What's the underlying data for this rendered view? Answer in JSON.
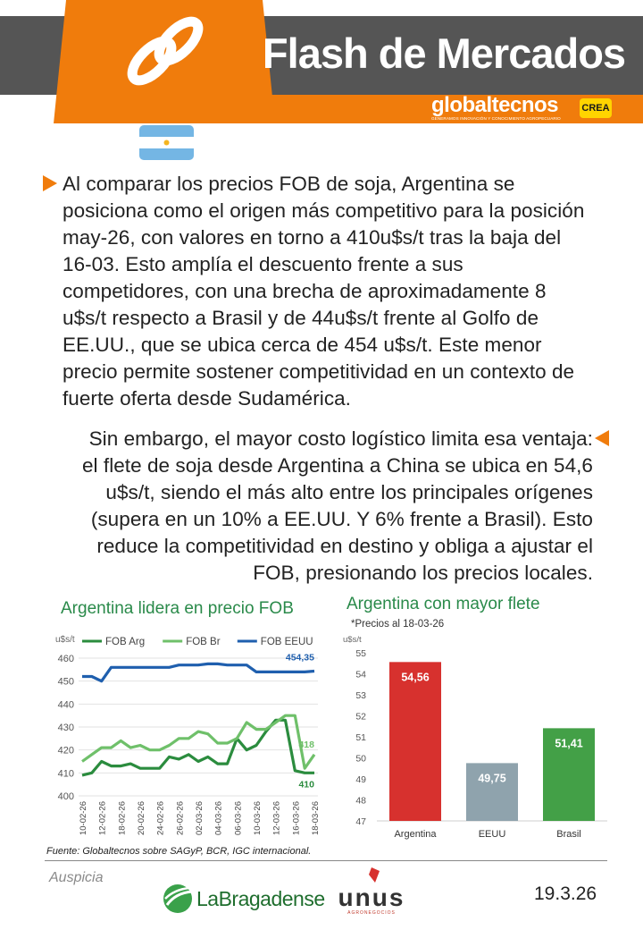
{
  "header": {
    "title": "Flash de Mercados",
    "brand": "globaltecnos",
    "brand_tagline": "GENERAMOS INNOVACIÓN Y CONOCIMIENTO AGROPECUARIO",
    "partner_logo": "CREA",
    "logo_icon": "chain-link-icon",
    "accent_color": "#f07c0c",
    "band_color": "#555555"
  },
  "flag": {
    "country": "Argentina",
    "icon": "argentina-flag-icon"
  },
  "paragraph1": {
    "lines": [
      "Al comparar los precios FOB de soja, Argentina se",
      "posiciona como el origen más competitivo para la posición",
      "may-26, con valores en torno a 410u$s/t tras la baja del",
      "16-03. Esto amplía el descuento frente a sus",
      "competidores, con una brecha de aproximadamente 8",
      "u$s/t respecto a Brasil y de 44u$s/t frente al Golfo de",
      "EE.UU., que se ubica cerca de 454 u$s/t. Este menor",
      "precio permite sostener competitividad en un contexto de",
      "fuerte oferta desde Sudamérica."
    ]
  },
  "paragraph2": {
    "lines": [
      "Sin embargo, el mayor costo logístico limita esa ventaja:",
      "el flete de soja desde Argentina a China se ubica en 54,6",
      "u$s/t, siendo el más alto entre los principales orígenes",
      "(supera en un 10% a EE.UU. Y  6% frente a Brasil). Esto",
      "reduce la competitividad en destino y obliga a ajustar el",
      "FOB, presionando los precios locales."
    ]
  },
  "chart_data": [
    {
      "type": "line",
      "title": "Argentina lidera en precio FOB",
      "ylabel": "u$s/t",
      "ylim": [
        400,
        460
      ],
      "yticks": [
        400,
        410,
        420,
        430,
        440,
        450,
        460
      ],
      "grid": true,
      "legend": "top",
      "x": [
        "10-02-26",
        "",
        "12-02-26",
        "",
        "18-02-26",
        "",
        "20-02-26",
        "",
        "24-02-26",
        "",
        "26-02-26",
        "",
        "02-03-26",
        "",
        "04-03-26",
        "",
        "06-03-26",
        "",
        "10-03-26",
        "",
        "12-03-26",
        "",
        "16-03-26",
        "",
        "18-03-26"
      ],
      "series": [
        {
          "name": "FOB Arg",
          "color": "#2b8c3e",
          "values": [
            409,
            410,
            415,
            413,
            413,
            414,
            412,
            412,
            412,
            417,
            416,
            418,
            415,
            417,
            414,
            414,
            425,
            420,
            422,
            428,
            433,
            433,
            411,
            410,
            410
          ],
          "end_label": "410"
        },
        {
          "name": "FOB Br",
          "color": "#6fc06a",
          "values": [
            415,
            418,
            421,
            421,
            424,
            421,
            422,
            420,
            420,
            422,
            425,
            425,
            428,
            427,
            423,
            423,
            425,
            432,
            429,
            429,
            432,
            435,
            435,
            412,
            418
          ],
          "end_label": "418"
        },
        {
          "name": "FOB EEUU",
          "color": "#1f5fae",
          "values": [
            452,
            452,
            450,
            456,
            456,
            456,
            456,
            456,
            456,
            456,
            457,
            457,
            457,
            457.5,
            457.5,
            457,
            457,
            457,
            454,
            454,
            454,
            454,
            454,
            454,
            454.35
          ],
          "end_label": "454,35"
        }
      ]
    },
    {
      "type": "bar",
      "title": "Argentina con mayor flete",
      "subtitle": "*Precios al 18-03-26",
      "ylabel": "u$s/t",
      "ylim": [
        47,
        55
      ],
      "yticks": [
        47,
        48,
        49,
        50,
        51,
        52,
        53,
        54,
        55
      ],
      "grid": false,
      "categories": [
        "Argentina",
        "EEUU",
        "Brasil"
      ],
      "values": [
        54.56,
        49.75,
        51.41
      ],
      "labels": [
        "54,56",
        "49,75",
        "51,41"
      ],
      "colors": [
        "#d7312e",
        "#8fa3ad",
        "#43a047"
      ]
    }
  ],
  "footer": {
    "source": "Fuente: Globaltecnos sobre SAGyP, BCR, IGC internacional.",
    "sponsor_label": "Auspicia",
    "sponsor1": "LaBragadense",
    "sponsor2": "unus",
    "sponsor2_tagline": "AGRONEGOCIOS",
    "date": "19.3.26"
  }
}
